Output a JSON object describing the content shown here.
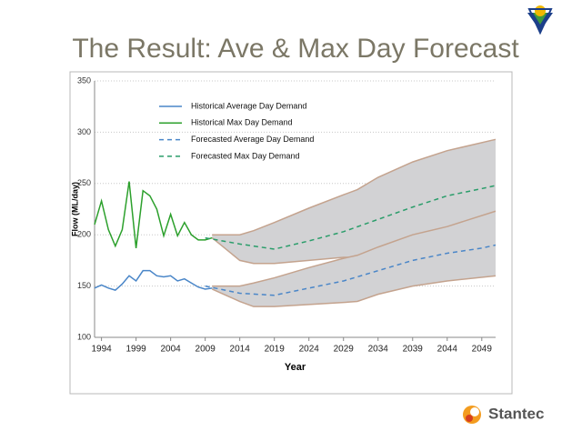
{
  "slide_title": "The Result: Ave & Max Day Forecast",
  "brand": "Stantec",
  "chart_data": {
    "type": "line",
    "x_label": "Year",
    "y_label": "Flow (ML/day)",
    "xlim": [
      1993,
      2051
    ],
    "ylim": [
      100,
      350
    ],
    "xticks": [
      1994,
      1999,
      2004,
      2009,
      2014,
      2019,
      2024,
      2029,
      2034,
      2039,
      2044,
      2049
    ],
    "yticks": [
      100,
      150,
      200,
      250,
      300,
      350
    ],
    "grid": true,
    "legend": "upper left",
    "bands": [
      {
        "color": "#d2d2d4",
        "edge": "#c4a38e",
        "x": [
          2010,
          2014,
          2016,
          2019,
          2024,
          2029,
          2031,
          2034,
          2039,
          2044,
          2051
        ],
        "upper": [
          200,
          200,
          204,
          212,
          226,
          239,
          244,
          256,
          271,
          282,
          293
        ],
        "lower": [
          197,
          175,
          172,
          172,
          175,
          178,
          178,
          186,
          198,
          205,
          212
        ]
      },
      {
        "color": "#d2d2d4",
        "edge": "#c4a38e",
        "x": [
          2010,
          2014,
          2016,
          2019,
          2024,
          2029,
          2031,
          2034,
          2039,
          2044,
          2051
        ],
        "upper": [
          150,
          150,
          153,
          158,
          168,
          177,
          180,
          188,
          200,
          208,
          223
        ],
        "lower": [
          147,
          135,
          130,
          130,
          132,
          134,
          135,
          142,
          150,
          155,
          160
        ]
      }
    ],
    "series": [
      {
        "name": "Historical Average Day Demand",
        "color": "#4a86c8",
        "dash": false,
        "x": [
          1993,
          1994,
          1995,
          1996,
          1997,
          1998,
          1999,
          2000,
          2001,
          2002,
          2003,
          2004,
          2005,
          2006,
          2007,
          2008,
          2009,
          2010
        ],
        "values": [
          148,
          151,
          148,
          146,
          152,
          160,
          155,
          165,
          165,
          160,
          159,
          160,
          155,
          157,
          153,
          149,
          147,
          148
        ]
      },
      {
        "name": "Historical Max Day Demand",
        "color": "#2ca02c",
        "dash": false,
        "x": [
          1993,
          1994,
          1995,
          1996,
          1997,
          1998,
          1999,
          2000,
          2001,
          2002,
          2003,
          2004,
          2005,
          2006,
          2007,
          2008,
          2009,
          2010
        ],
        "values": [
          210,
          233,
          205,
          189,
          205,
          252,
          187,
          243,
          238,
          225,
          199,
          220,
          199,
          212,
          200,
          195,
          195,
          197
        ]
      },
      {
        "name": "Forecasted Average Day Demand",
        "color": "#4a86c8",
        "dash": true,
        "x": [
          2009,
          2014,
          2019,
          2024,
          2029,
          2034,
          2039,
          2044,
          2049,
          2051
        ],
        "values": [
          150,
          143,
          141,
          148,
          155,
          165,
          175,
          182,
          187,
          190
        ]
      },
      {
        "name": "Forecasted Max Day Demand",
        "color": "#2a9d6a",
        "dash": true,
        "x": [
          2009,
          2014,
          2019,
          2024,
          2029,
          2034,
          2039,
          2044,
          2049,
          2051
        ],
        "values": [
          197,
          191,
          186,
          194,
          203,
          215,
          227,
          238,
          245,
          248
        ]
      }
    ]
  }
}
